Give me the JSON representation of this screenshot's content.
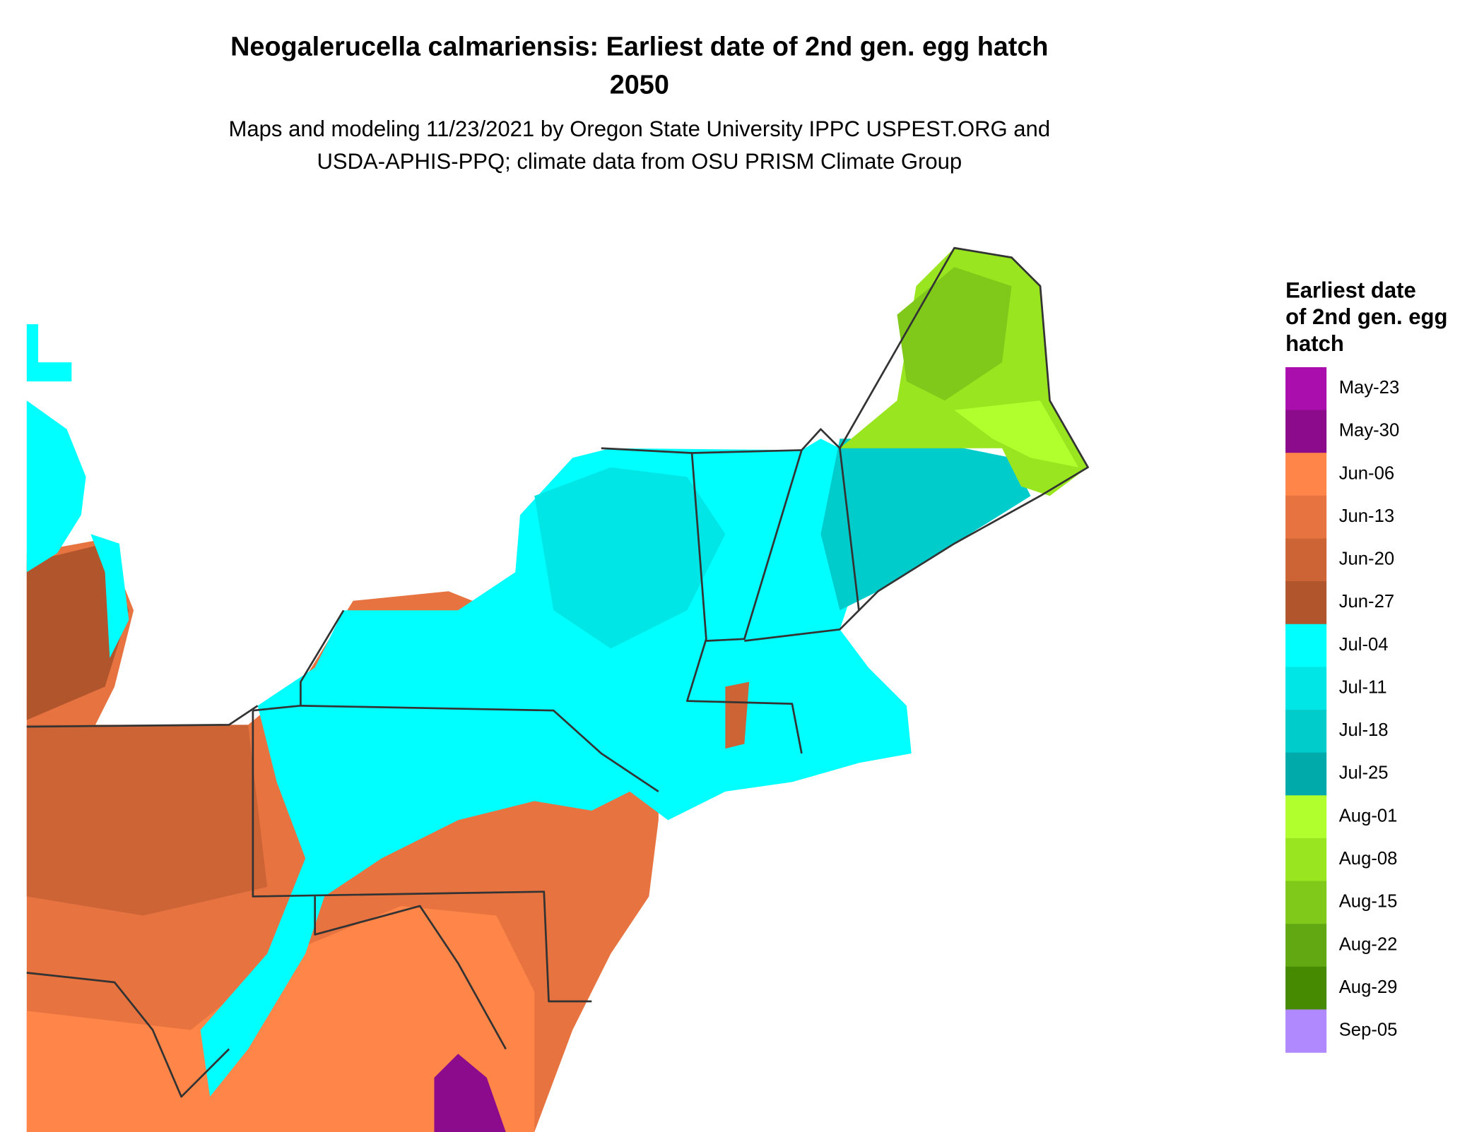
{
  "header": {
    "title": "Neogalerucella calmariensis: Earliest date of 2nd gen. egg hatch",
    "year": "2050",
    "subtitle": [
      "Maps and modeling 11/23/2021 by Oregon State University IPPC USPEST.ORG and",
      "USDA-APHIS-PPQ; climate data from OSU PRISM Climate Group"
    ]
  },
  "legend": {
    "title": [
      "Earliest date",
      "of 2nd gen. egg",
      "hatch"
    ],
    "items": [
      {
        "label": "May-23",
        "color": "#aa0fae"
      },
      {
        "label": "May-30",
        "color": "#8c0a8c"
      },
      {
        "label": "Jun-06",
        "color": "#ff8548"
      },
      {
        "label": "Jun-13",
        "color": "#e67340"
      },
      {
        "label": "Jun-20",
        "color": "#cc6436"
      },
      {
        "label": "Jun-27",
        "color": "#b0552c"
      },
      {
        "label": "Jul-04",
        "color": "#00ffff"
      },
      {
        "label": "Jul-11",
        "color": "#00e6e6"
      },
      {
        "label": "Jul-18",
        "color": "#00cccc"
      },
      {
        "label": "Jul-25",
        "color": "#00aaaa"
      },
      {
        "label": "Aug-01",
        "color": "#b2ff2e"
      },
      {
        "label": "Aug-08",
        "color": "#99e620"
      },
      {
        "label": "Aug-15",
        "color": "#80c81a"
      },
      {
        "label": "Aug-22",
        "color": "#62a812"
      },
      {
        "label": "Aug-29",
        "color": "#458a00"
      },
      {
        "label": "Sep-05",
        "color": "#b088ff"
      }
    ]
  }
}
